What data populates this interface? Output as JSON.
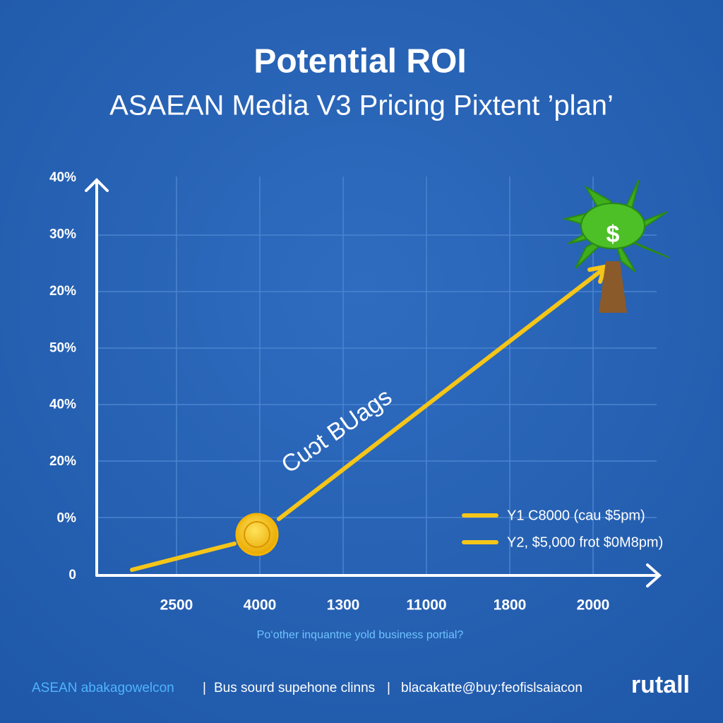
{
  "title": "Potential ROI",
  "subtitle": "ASAEAN Media V3 Pricing Pixtent ’plan’",
  "y_axis_labels": [
    "40%",
    "30%",
    "20%",
    "50%",
    "40%",
    "20%",
    "0%",
    "0"
  ],
  "x_axis_labels": [
    "2500",
    "4000",
    "1300",
    "11000",
    "1800",
    "2000"
  ],
  "annotation": "Cuɔt BUags",
  "tree_symbol": "$",
  "legend": [
    "Y1 C8000 (cau $5pm)",
    "Y2, $5,000 frot $0M8pm)"
  ],
  "question": "Po‘other inquantne yold business portial?",
  "footer": [
    "ASEAN abakagowelcon",
    "|",
    "Bus sourd supehone clinns",
    "|",
    "blacakatte@buy:feofislsaiacon"
  ],
  "brand": "rutall"
}
